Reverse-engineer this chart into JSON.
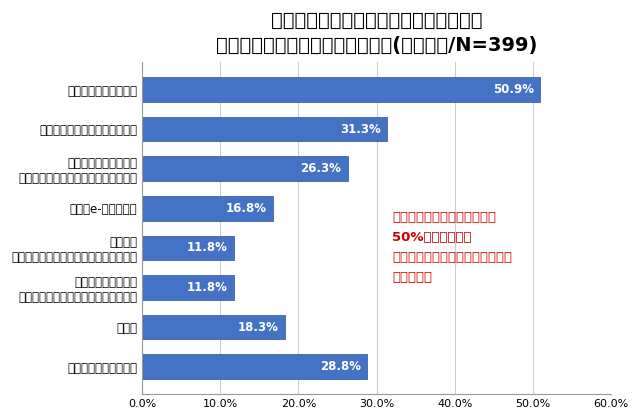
{
  "title_line1": "あなたが知っている運転支援システムを",
  "title_line2": "搭載している車を教えてください",
  "title_suffix": "(複数回答/N=399)",
  "categories": [
    "スバル「アイサイト」",
    "ダイハツ「スマートアシスト」",
    "トヨタ「衝突回避支援\nプリクラッシュセーフティシステム」",
    "三菱「e-アシスト」",
    "レクサス\n「プリクラッシュセーフティシステム」",
    "フォルクスワーゲン\n「シティエマージェンシーブレーキ」",
    "その他",
    "知っているものはない"
  ],
  "values": [
    50.9,
    31.3,
    26.3,
    16.8,
    11.8,
    11.8,
    18.3,
    28.8
  ],
  "bar_color": "#4472C4",
  "bar_edge_color": "#2F5496",
  "annotation_text": "スバル「アイサイト」以外は\n50%を切る結果に\nまだまだ漠然としたイメージの方\nが多いよう",
  "annotation_color": "#CC0000",
  "xlim": [
    0,
    60
  ],
  "xtick_values": [
    0,
    10,
    20,
    30,
    40,
    50,
    60
  ],
  "xtick_labels": [
    "0.0%",
    "10.0%",
    "20.0%",
    "30.0%",
    "40.0%",
    "50.0%",
    "60.0%"
  ],
  "bg_color": "#FFFFFF",
  "grid_color": "#CCCCCC",
  "title_fontsize": 14,
  "label_fontsize": 8.5,
  "value_fontsize": 8.5,
  "annot_fontsize": 9.5
}
